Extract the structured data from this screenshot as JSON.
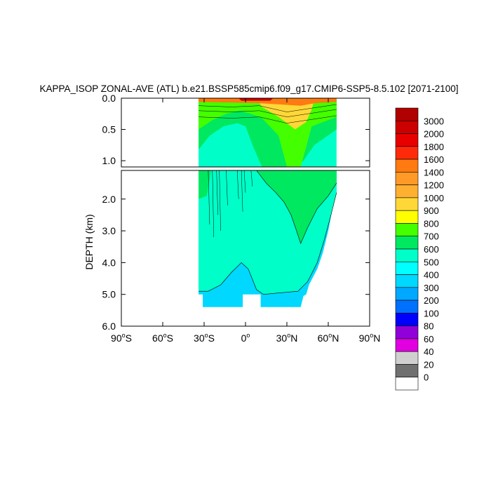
{
  "chart_data": {
    "type": "heatmap",
    "title": "KAPPA_ISOP ZONAL-AVE (ATL) b.e21.BSSP585cmip6.f09_g17.CMIP6-SSP5-8.5.102 [2071-2100]",
    "ylabel": "DEPTH (km)",
    "xlabel": "",
    "upper_panel": {
      "ylim": [
        0.0,
        1.1
      ],
      "yticks": [
        "0.0",
        "0.5",
        "1.0"
      ],
      "ytick_values": [
        0.0,
        0.5,
        1.0
      ]
    },
    "lower_panel": {
      "ylim": [
        1.1,
        6.0
      ],
      "yticks": [
        "2.0",
        "3.0",
        "4.0",
        "5.0",
        "6.0"
      ],
      "ytick_values": [
        2.0,
        3.0,
        4.0,
        5.0,
        6.0
      ]
    },
    "xlim": [
      -90,
      90
    ],
    "xtick_values": [
      -90,
      -60,
      -30,
      0,
      30,
      60,
      90
    ],
    "xticks": [
      {
        "deg": "90",
        "hemi": "S"
      },
      {
        "deg": "60",
        "hemi": "S"
      },
      {
        "deg": "30",
        "hemi": "S"
      },
      {
        "deg": "0",
        "hemi": ""
      },
      {
        "deg": "30",
        "hemi": "N"
      },
      {
        "deg": "60",
        "hemi": "N"
      },
      {
        "deg": "90",
        "hemi": "N"
      }
    ],
    "data_extent": {
      "lat_min": -34,
      "lat_max": 66,
      "max_depth": 5.4
    },
    "colorbar": {
      "labels": [
        "3000",
        "2000",
        "1800",
        "1600",
        "1400",
        "1200",
        "1000",
        "900",
        "800",
        "700",
        "600",
        "500",
        "400",
        "300",
        "200",
        "100",
        "80",
        "60",
        "40",
        "20",
        "0"
      ],
      "colors": [
        "#b00000",
        "#cc0000",
        "#e80000",
        "#ff2a0a",
        "#ff7a10",
        "#ff9a28",
        "#ffb030",
        "#ffd838",
        "#ffff00",
        "#44ff00",
        "#00e860",
        "#00ffc8",
        "#00ffff",
        "#00d8ff",
        "#00a8ff",
        "#0070ff",
        "#0000ff",
        "#9000d8",
        "#e000e0",
        "#d0d0d0",
        "#707070",
        "#ffffff"
      ]
    },
    "fields": {
      "deep": "#00ffc8",
      "mid": "#00e860",
      "upper": "#44ff00",
      "surface": "#ffd838",
      "bottom": "#00d8ff",
      "hot": "#ff7a10",
      "peak": "#cc0000"
    }
  }
}
